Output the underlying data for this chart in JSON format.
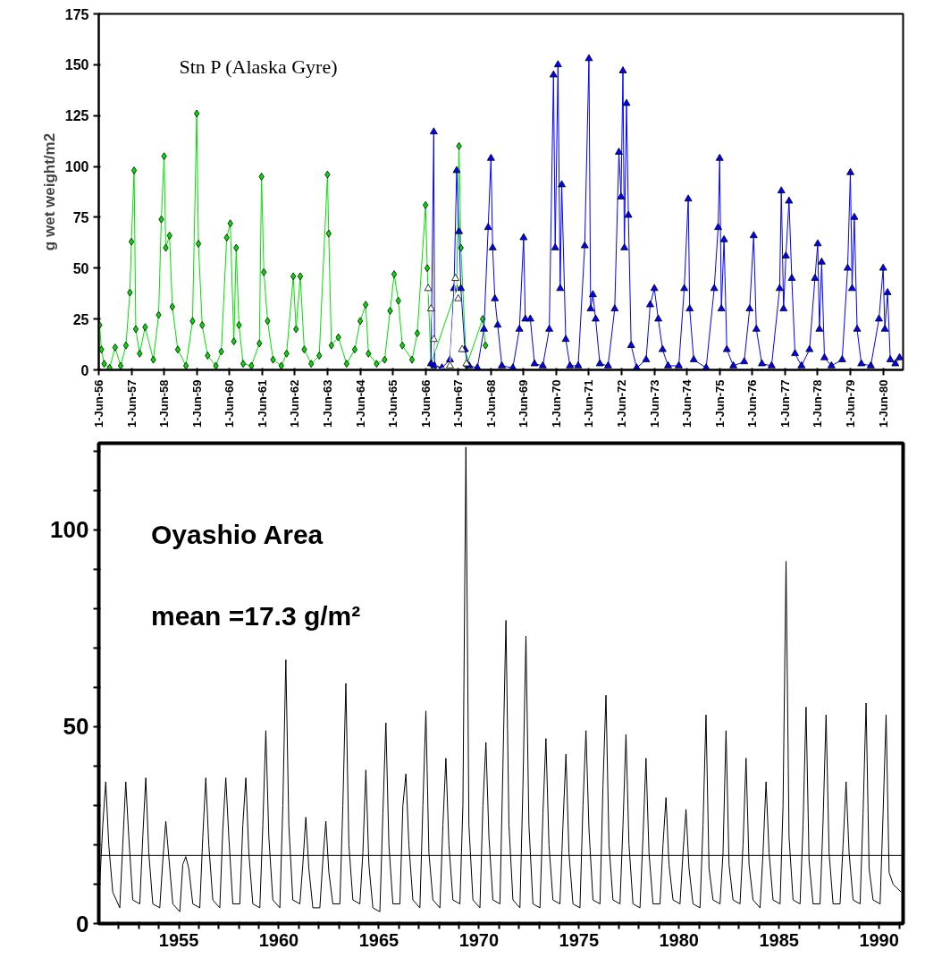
{
  "chart_data": [
    {
      "type": "line",
      "ylabel": "g wet weight/m2",
      "annotations": [
        "Stn P (Alaska Gyre)"
      ],
      "xlim": [
        "1956-06-01",
        "1981-01-10"
      ],
      "ylim": [
        0,
        175
      ],
      "yticks": [
        0,
        25,
        50,
        75,
        100,
        125,
        150,
        175
      ],
      "xticks": [
        {
          "value": "1956-06-01",
          "label": "1-Jun-56"
        },
        {
          "value": "1957-06-01",
          "label": "1-Jun-57"
        },
        {
          "value": "1958-06-01",
          "label": "1-Jun-58"
        },
        {
          "value": "1959-06-01",
          "label": "1-Jun-59"
        },
        {
          "value": "1960-06-01",
          "label": "1-Jun-60"
        },
        {
          "value": "1961-06-01",
          "label": "1-Jun-61"
        },
        {
          "value": "1962-06-01",
          "label": "1-Jun-62"
        },
        {
          "value": "1963-06-01",
          "label": "1-Jun-63"
        },
        {
          "value": "1964-06-01",
          "label": "1-Jun-64"
        },
        {
          "value": "1965-06-01",
          "label": "1-Jun-65"
        },
        {
          "value": "1966-06-01",
          "label": "1-Jun-66"
        },
        {
          "value": "1967-06-01",
          "label": "1-Jun-67"
        },
        {
          "value": "1968-06-01",
          "label": "1-Jun-68"
        },
        {
          "value": "1969-06-01",
          "label": "1-Jun-69"
        },
        {
          "value": "1970-06-01",
          "label": "1-Jun-70"
        },
        {
          "value": "1971-06-01",
          "label": "1-Jun-71"
        },
        {
          "value": "1972-06-01",
          "label": "1-Jun-72"
        },
        {
          "value": "1973-06-01",
          "label": "1-Jun-73"
        },
        {
          "value": "1974-06-01",
          "label": "1-Jun-74"
        },
        {
          "value": "1975-06-01",
          "label": "1-Jun-75"
        },
        {
          "value": "1976-06-01",
          "label": "1-Jun-76"
        },
        {
          "value": "1977-06-01",
          "label": "1-Jun-77"
        },
        {
          "value": "1978-06-01",
          "label": "1-Jun-78"
        },
        {
          "value": "1979-06-01",
          "label": "1-Jun-79"
        },
        {
          "value": "1980-06-01",
          "label": "1-Jun-80"
        }
      ],
      "series": [
        {
          "color": "#ffffff",
          "marker": "triangle",
          "x": [
            "1966-07-01",
            "1966-08-01",
            "1966-09-01",
            "1966-10-15",
            "1967-03-01",
            "1967-05-01",
            "1967-06-01",
            "1967-07-15",
            "1967-09-01"
          ],
          "values": [
            40,
            30,
            15,
            0,
            2,
            45,
            35,
            10,
            3
          ]
        },
        {
          "color": "#00e000",
          "marker": "diamond",
          "x": [
            "1956-06-10",
            "1956-07-01",
            "1956-08-01",
            "1956-10-01",
            "1956-12-01",
            "1957-02-01",
            "1957-04-01",
            "1957-05-15",
            "1957-06-01",
            "1957-07-01",
            "1957-07-20",
            "1957-09-01",
            "1957-11-01",
            "1958-02-01",
            "1958-04-01",
            "1958-05-01",
            "1958-06-01",
            "1958-06-20",
            "1958-08-01",
            "1958-09-01",
            "1958-11-01",
            "1959-02-01",
            "1959-04-15",
            "1959-06-01",
            "1959-06-20",
            "1959-08-01",
            "1959-10-01",
            "1960-01-01",
            "1960-03-01",
            "1960-05-01",
            "1960-06-10",
            "1960-07-20",
            "1960-08-15",
            "1960-09-15",
            "1960-11-01",
            "1961-02-01",
            "1961-05-01",
            "1961-05-25",
            "1961-06-20",
            "1961-08-01",
            "1961-10-01",
            "1962-01-01",
            "1962-03-01",
            "1962-05-15",
            "1962-06-15",
            "1962-08-01",
            "1962-09-15",
            "1962-12-01",
            "1963-03-01",
            "1963-06-01",
            "1963-06-15",
            "1963-07-15",
            "1963-10-01",
            "1964-01-01",
            "1964-04-01",
            "1964-06-01",
            "1964-08-01",
            "1964-09-01",
            "1964-12-01",
            "1965-03-01",
            "1965-05-01",
            "1965-06-15",
            "1965-08-01",
            "1965-09-15",
            "1966-01-01",
            "1966-03-01",
            "1966-06-01",
            "1966-06-20",
            "1966-08-01",
            "1967-05-15",
            "1967-06-10",
            "1967-07-01",
            "1967-09-01",
            "1968-03-01",
            "1968-04-01"
          ],
          "values": [
            22,
            10,
            3,
            1,
            11,
            2,
            12,
            38,
            63,
            98,
            20,
            8,
            21,
            5,
            27,
            74,
            105,
            60,
            66,
            31,
            10,
            2,
            24,
            126,
            62,
            22,
            7,
            2,
            9,
            65,
            72,
            14,
            60,
            22,
            3,
            2,
            13,
            95,
            48,
            24,
            5,
            2,
            8,
            46,
            20,
            46,
            10,
            3,
            7,
            96,
            67,
            12,
            16,
            3,
            10,
            24,
            32,
            8,
            3,
            5,
            29,
            47,
            34,
            12,
            5,
            18,
            81,
            50,
            3,
            40,
            110,
            60,
            2,
            25,
            12
          ]
        },
        {
          "color": "#0000ff",
          "marker": "triangle",
          "x": [
            "1966-08-01",
            "1966-09-01",
            "1966-09-10",
            "1966-12-01",
            "1967-03-01",
            "1967-04-15",
            "1967-05-15",
            "1967-06-10",
            "1967-07-01",
            "1967-08-15",
            "1967-10-01",
            "1968-01-01",
            "1968-03-15",
            "1968-05-01",
            "1968-06-01",
            "1968-06-20",
            "1968-07-15",
            "1968-08-15",
            "1968-10-01",
            "1969-02-01",
            "1969-04-15",
            "1969-06-01",
            "1969-06-20",
            "1969-08-15",
            "1969-10-01",
            "1970-01-01",
            "1970-03-15",
            "1970-05-01",
            "1970-05-20",
            "1970-06-20",
            "1970-07-15",
            "1970-08-01",
            "1970-09-15",
            "1970-11-01",
            "1971-02-01",
            "1971-04-15",
            "1971-06-01",
            "1971-06-20",
            "1971-07-15",
            "1971-08-15",
            "1971-10-01",
            "1972-01-01",
            "1972-03-15",
            "1972-05-01",
            "1972-05-25",
            "1972-06-15",
            "1972-07-01",
            "1972-07-25",
            "1972-08-15",
            "1972-09-15",
            "1972-11-15",
            "1973-03-01",
            "1973-04-15",
            "1973-06-01",
            "1973-07-15",
            "1973-09-01",
            "1973-11-01",
            "1974-03-01",
            "1974-05-01",
            "1974-06-15",
            "1974-07-01",
            "1974-08-15",
            "1975-01-01",
            "1975-04-01",
            "1975-05-15",
            "1975-06-01",
            "1975-06-20",
            "1975-07-20",
            "1975-08-20",
            "1975-11-01",
            "1976-03-01",
            "1976-05-01",
            "1976-06-15",
            "1976-07-15",
            "1976-09-15",
            "1977-01-01",
            "1977-04-01",
            "1977-04-20",
            "1977-05-15",
            "1977-06-10",
            "1977-07-15",
            "1977-08-15",
            "1977-09-20",
            "1977-12-01",
            "1978-03-01",
            "1978-05-01",
            "1978-06-01",
            "1978-06-20",
            "1978-07-15",
            "1978-08-15",
            "1978-11-01",
            "1979-03-01",
            "1979-05-01",
            "1979-06-01",
            "1979-06-20",
            "1979-07-15",
            "1979-08-15",
            "1979-10-01",
            "1980-01-15",
            "1980-04-15",
            "1980-06-01",
            "1980-06-20",
            "1980-07-20",
            "1980-08-20",
            "1980-10-15",
            "1980-12-01"
          ],
          "values": [
            3,
            117,
            2,
            1,
            5,
            40,
            98,
            68,
            40,
            10,
            2,
            1,
            20,
            70,
            104,
            60,
            35,
            22,
            2,
            1,
            20,
            65,
            25,
            25,
            3,
            2,
            20,
            145,
            60,
            150,
            40,
            91,
            15,
            2,
            2,
            61,
            153,
            30,
            37,
            25,
            3,
            2,
            30,
            107,
            85,
            147,
            60,
            131,
            76,
            12,
            1,
            5,
            32,
            40,
            25,
            10,
            2,
            2,
            40,
            84,
            30,
            5,
            1,
            40,
            70,
            104,
            30,
            64,
            10,
            2,
            4,
            30,
            66,
            20,
            3,
            2,
            40,
            88,
            30,
            56,
            83,
            45,
            8,
            2,
            10,
            45,
            62,
            20,
            53,
            6,
            2,
            5,
            50,
            97,
            40,
            75,
            20,
            3,
            2,
            25,
            50,
            20,
            38,
            5,
            3,
            6
          ]
        }
      ]
    },
    {
      "type": "line",
      "annotations": [
        "Oyashio Area",
        "mean =17.3 g/m²"
      ],
      "xlim": [
        1951,
        1991.2
      ],
      "ylim": [
        0,
        122
      ],
      "marker": "none",
      "yticks": [
        0,
        {
          "value": 10,
          "label": null
        },
        {
          "value": 20,
          "label": null
        },
        {
          "value": 30,
          "label": null
        },
        {
          "value": 40,
          "label": null
        },
        50,
        {
          "value": 60,
          "label": null
        },
        {
          "value": 70,
          "label": null
        },
        {
          "value": 80,
          "label": null
        },
        {
          "value": 90,
          "label": null
        },
        100,
        {
          "value": 110,
          "label": null
        },
        {
          "value": 120,
          "label": null
        }
      ],
      "xticks": [
        {
          "value": 1952,
          "label": null
        },
        {
          "value": 1953,
          "label": null
        },
        {
          "value": 1954,
          "label": null
        },
        1955,
        {
          "value": 1956,
          "label": null
        },
        {
          "value": 1957,
          "label": null
        },
        {
          "value": 1958,
          "label": null
        },
        {
          "value": 1959,
          "label": null
        },
        1960,
        {
          "value": 1961,
          "label": null
        },
        {
          "value": 1962,
          "label": null
        },
        {
          "value": 1963,
          "label": null
        },
        {
          "value": 1964,
          "label": null
        },
        1965,
        {
          "value": 1966,
          "label": null
        },
        {
          "value": 1967,
          "label": null
        },
        {
          "value": 1968,
          "label": null
        },
        {
          "value": 1969,
          "label": null
        },
        1970,
        {
          "value": 1971,
          "label": null
        },
        {
          "value": 1972,
          "label": null
        },
        {
          "value": 1973,
          "label": null
        },
        {
          "value": 1974,
          "label": null
        },
        1975,
        {
          "value": 1976,
          "label": null
        },
        {
          "value": 1977,
          "label": null
        },
        {
          "value": 1978,
          "label": null
        },
        {
          "value": 1979,
          "label": null
        },
        1980,
        {
          "value": 1981,
          "label": null
        },
        {
          "value": 1982,
          "label": null
        },
        {
          "value": 1983,
          "label": null
        },
        {
          "value": 1984,
          "label": null
        },
        1985,
        {
          "value": 1986,
          "label": null
        },
        {
          "value": 1987,
          "label": null
        },
        {
          "value": 1988,
          "label": null
        },
        {
          "value": 1989,
          "label": null
        },
        1990,
        {
          "value": 1991,
          "label": null
        }
      ],
      "ref_lines": [
        {
          "axis": "y",
          "value": 17.3,
          "color": "#000000"
        }
      ],
      "series": [
        {
          "color": "#000000",
          "x": [
            1951.05,
            1951.2,
            1951.35,
            1951.5,
            1951.7,
            1952.05,
            1952.2,
            1952.35,
            1952.5,
            1952.7,
            1953.05,
            1953.2,
            1953.35,
            1953.5,
            1953.7,
            1954.05,
            1954.2,
            1954.35,
            1954.5,
            1954.7,
            1955.05,
            1955.2,
            1955.35,
            1955.5,
            1955.7,
            1956.05,
            1956.2,
            1956.35,
            1956.5,
            1956.7,
            1957.05,
            1957.2,
            1957.35,
            1957.5,
            1957.7,
            1958.05,
            1958.2,
            1958.35,
            1958.5,
            1958.7,
            1959.05,
            1959.2,
            1959.35,
            1959.5,
            1959.7,
            1960.05,
            1960.2,
            1960.35,
            1960.5,
            1960.7,
            1961.05,
            1961.2,
            1961.35,
            1961.5,
            1961.7,
            1962.05,
            1962.2,
            1962.35,
            1962.5,
            1962.7,
            1963.05,
            1963.2,
            1963.35,
            1963.5,
            1963.7,
            1964.05,
            1964.2,
            1964.35,
            1964.5,
            1964.7,
            1965.05,
            1965.2,
            1965.35,
            1965.5,
            1965.7,
            1966.05,
            1966.2,
            1966.35,
            1966.5,
            1966.7,
            1967.05,
            1967.2,
            1967.35,
            1967.5,
            1967.7,
            1968.05,
            1968.2,
            1968.35,
            1968.5,
            1968.7,
            1969.05,
            1969.2,
            1969.35,
            1969.5,
            1969.7,
            1970.05,
            1970.2,
            1970.35,
            1970.5,
            1970.7,
            1971.05,
            1971.2,
            1971.35,
            1971.5,
            1971.7,
            1972.05,
            1972.2,
            1972.35,
            1972.5,
            1972.7,
            1973.05,
            1973.2,
            1973.35,
            1973.5,
            1973.7,
            1974.05,
            1974.2,
            1974.35,
            1974.5,
            1974.7,
            1975.05,
            1975.2,
            1975.35,
            1975.5,
            1975.7,
            1976.05,
            1976.2,
            1976.35,
            1976.5,
            1976.7,
            1977.05,
            1977.2,
            1977.35,
            1977.5,
            1977.7,
            1978.05,
            1978.2,
            1978.35,
            1978.5,
            1978.7,
            1979.05,
            1979.2,
            1979.35,
            1979.5,
            1979.7,
            1980.05,
            1980.2,
            1980.35,
            1980.5,
            1980.7,
            1981.05,
            1981.2,
            1981.35,
            1981.5,
            1981.7,
            1982.05,
            1982.2,
            1982.35,
            1982.5,
            1982.7,
            1983.05,
            1983.2,
            1983.35,
            1983.5,
            1983.7,
            1984.05,
            1984.2,
            1984.35,
            1984.5,
            1984.7,
            1985.05,
            1985.2,
            1985.35,
            1985.5,
            1985.7,
            1986.05,
            1986.2,
            1986.35,
            1986.5,
            1986.7,
            1987.05,
            1987.2,
            1987.35,
            1987.5,
            1987.7,
            1988.05,
            1988.2,
            1988.35,
            1988.5,
            1988.7,
            1989.05,
            1989.2,
            1989.35,
            1989.5,
            1989.7,
            1990.05,
            1990.2,
            1990.35,
            1990.5,
            1990.7,
            1991.1
          ],
          "values": [
            10,
            25,
            36,
            20,
            8,
            4,
            20,
            36,
            22,
            6,
            5,
            22,
            37,
            18,
            5,
            4,
            16,
            26,
            17,
            5,
            3,
            15,
            17,
            14,
            5,
            4,
            22,
            37,
            20,
            6,
            4,
            24,
            37,
            22,
            5,
            5,
            25,
            37,
            18,
            5,
            4,
            25,
            49,
            22,
            6,
            4,
            30,
            67,
            25,
            6,
            5,
            15,
            27,
            14,
            4,
            4,
            16,
            26,
            13,
            5,
            5,
            30,
            61,
            20,
            6,
            5,
            18,
            39,
            15,
            4,
            3,
            28,
            51,
            20,
            5,
            5,
            30,
            38,
            20,
            6,
            4,
            30,
            54,
            18,
            6,
            4,
            25,
            42,
            20,
            6,
            5,
            30,
            121,
            25,
            6,
            4,
            30,
            46,
            22,
            6,
            5,
            40,
            77,
            25,
            6,
            4,
            35,
            73,
            25,
            5,
            4,
            28,
            47,
            20,
            6,
            5,
            25,
            43,
            18,
            5,
            4,
            30,
            49,
            24,
            6,
            5,
            35,
            58,
            20,
            6,
            5,
            25,
            48,
            20,
            5,
            4,
            22,
            42,
            18,
            5,
            5,
            20,
            32,
            15,
            6,
            5,
            18,
            29,
            14,
            5,
            4,
            25,
            53,
            14,
            6,
            5,
            18,
            49,
            15,
            6,
            5,
            20,
            42,
            15,
            6,
            4,
            18,
            36,
            18,
            6,
            5,
            30,
            92,
            22,
            6,
            5,
            25,
            55,
            16,
            5,
            5,
            26,
            53,
            18,
            5,
            5,
            20,
            36,
            18,
            6,
            5,
            28,
            56,
            14,
            6,
            5,
            28,
            53,
            13,
            10,
            8
          ]
        }
      ]
    }
  ]
}
